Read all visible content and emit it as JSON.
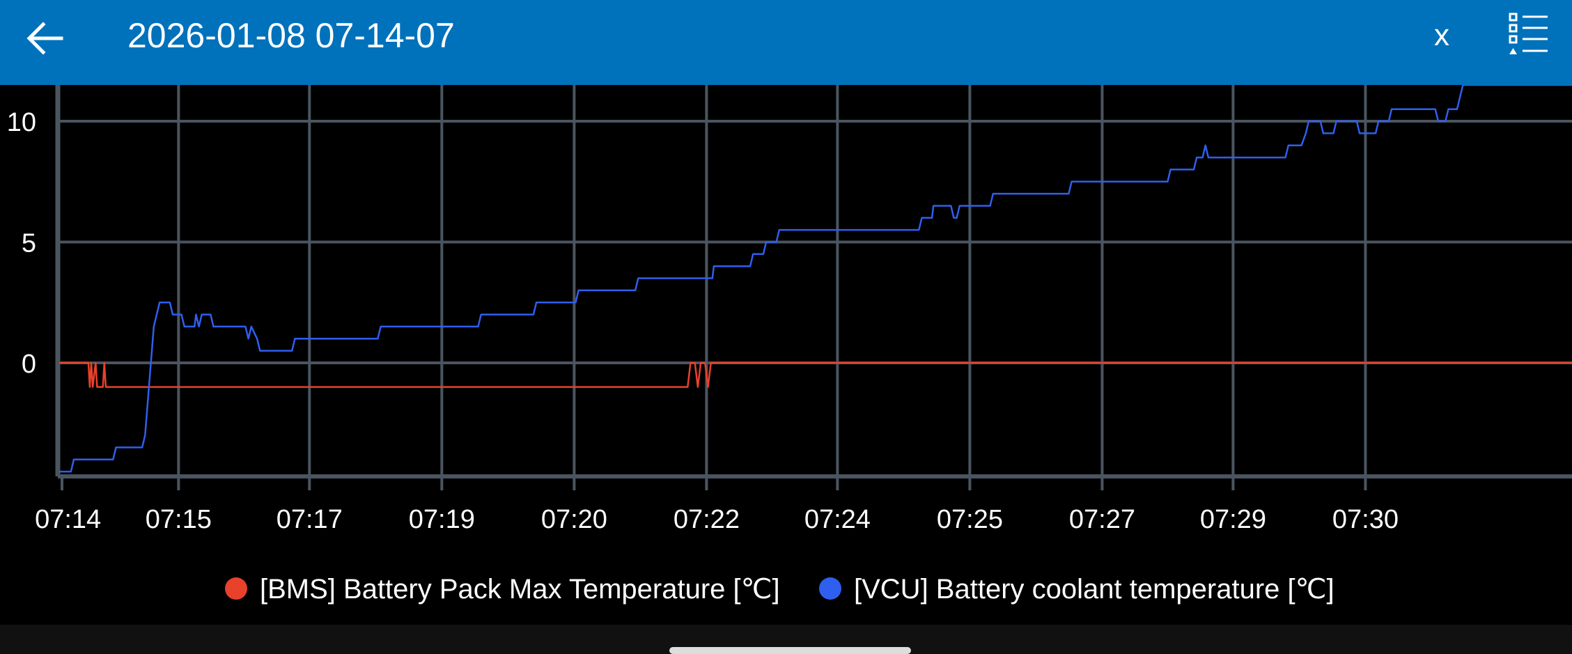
{
  "header": {
    "title": "2026-01-08 07-14-07",
    "back_icon": "arrow-left-icon",
    "close_label": "x",
    "menu_icon": "checklist-menu-icon"
  },
  "colors": {
    "appbar": "#0071BB",
    "background": "#000000",
    "grid": "#4B5560",
    "bms_series": "#E8412C",
    "vcu_series": "#2F5FEE"
  },
  "chart_data": {
    "type": "line",
    "title": "",
    "xlabel": "",
    "ylabel": "",
    "ylim": [
      -4.7,
      11.5
    ],
    "yticks": [
      0,
      5,
      10
    ],
    "xlim": [
      "07:14:07",
      "07:31:28"
    ],
    "xticks": [
      "07:14",
      "07:15",
      "07:17",
      "07:19",
      "07:20",
      "07:22",
      "07:24",
      "07:25",
      "07:27",
      "07:29",
      "07:30"
    ],
    "grid": true,
    "legend_position": "bottom-center",
    "series": [
      {
        "name": "[BMS] Battery Pack Max Temperature [℃]",
        "color": "#E8412C",
        "points": [
          [
            "07:14:08",
            0
          ],
          [
            "07:14:28",
            0
          ],
          [
            "07:14:29",
            -1
          ],
          [
            "07:14:30",
            0
          ],
          [
            "07:14:31",
            -1
          ],
          [
            "07:14:33",
            0
          ],
          [
            "07:14:34",
            -1
          ],
          [
            "07:14:38",
            -1
          ],
          [
            "07:14:39",
            0
          ],
          [
            "07:14:40",
            -1
          ],
          [
            "07:21:20",
            -1
          ],
          [
            "07:21:22",
            0
          ],
          [
            "07:21:25",
            0
          ],
          [
            "07:21:27",
            -1
          ],
          [
            "07:21:29",
            0
          ],
          [
            "07:21:32",
            0
          ],
          [
            "07:21:34",
            -1
          ],
          [
            "07:21:36",
            0
          ],
          [
            "07:31:28",
            0
          ]
        ]
      },
      {
        "name": "[VCU] Battery coolant temperature [℃]",
        "color": "#2F5FEE",
        "points": [
          [
            "07:14:08",
            -4.5
          ],
          [
            "07:14:16",
            -4.5
          ],
          [
            "07:14:18",
            -4
          ],
          [
            "07:14:45",
            -4
          ],
          [
            "07:14:47",
            -3.5
          ],
          [
            "07:15:05",
            -3.5
          ],
          [
            "07:15:07",
            -3
          ],
          [
            "07:15:13",
            1.5
          ],
          [
            "07:15:17",
            2.5
          ],
          [
            "07:15:24",
            2.5
          ],
          [
            "07:15:26",
            2
          ],
          [
            "07:15:32",
            2
          ],
          [
            "07:15:34",
            1.5
          ],
          [
            "07:15:41",
            1.5
          ],
          [
            "07:15:42",
            2
          ],
          [
            "07:15:44",
            1.5
          ],
          [
            "07:15:46",
            2
          ],
          [
            "07:15:52",
            2
          ],
          [
            "07:15:54",
            1.5
          ],
          [
            "07:16:16",
            1.5
          ],
          [
            "07:16:18",
            1
          ],
          [
            "07:16:20",
            1.5
          ],
          [
            "07:16:24",
            1
          ],
          [
            "07:16:26",
            0.5
          ],
          [
            "07:16:48",
            0.5
          ],
          [
            "07:16:50",
            1
          ],
          [
            "07:17:47",
            1
          ],
          [
            "07:17:49",
            1.5
          ],
          [
            "07:18:56",
            1.5
          ],
          [
            "07:18:58",
            2
          ],
          [
            "07:19:34",
            2
          ],
          [
            "07:19:36",
            2.5
          ],
          [
            "07:20:03",
            2.5
          ],
          [
            "07:20:05",
            3
          ],
          [
            "07:20:44",
            3
          ],
          [
            "07:20:46",
            3.5
          ],
          [
            "07:21:37",
            3.5
          ],
          [
            "07:21:38",
            4
          ],
          [
            "07:22:03",
            4
          ],
          [
            "07:22:05",
            4.5
          ],
          [
            "07:22:12",
            4.5
          ],
          [
            "07:22:14",
            5
          ],
          [
            "07:22:21",
            5
          ],
          [
            "07:22:23",
            5.5
          ],
          [
            "07:23:59",
            5.5
          ],
          [
            "07:24:01",
            6
          ],
          [
            "07:24:08",
            6
          ],
          [
            "07:24:09",
            6.5
          ],
          [
            "07:24:21",
            6.5
          ],
          [
            "07:24:23",
            6
          ],
          [
            "07:24:25",
            6
          ],
          [
            "07:24:27",
            6.5
          ],
          [
            "07:24:48",
            6.5
          ],
          [
            "07:24:50",
            7
          ],
          [
            "07:25:42",
            7
          ],
          [
            "07:25:44",
            7.5
          ],
          [
            "07:26:50",
            7.5
          ],
          [
            "07:26:52",
            8
          ],
          [
            "07:27:08",
            8
          ],
          [
            "07:27:10",
            8.5
          ],
          [
            "07:27:14",
            8.5
          ],
          [
            "07:27:16",
            9
          ],
          [
            "07:27:18",
            8.5
          ],
          [
            "07:28:11",
            8.5
          ],
          [
            "07:28:13",
            9
          ],
          [
            "07:28:22",
            9
          ],
          [
            "07:28:25",
            9.5
          ],
          [
            "07:28:27",
            10
          ],
          [
            "07:28:35",
            10
          ],
          [
            "07:28:37",
            9.5
          ],
          [
            "07:28:44",
            9.5
          ],
          [
            "07:28:46",
            10
          ],
          [
            "07:29:00",
            10
          ],
          [
            "07:29:02",
            9.5
          ],
          [
            "07:29:13",
            9.5
          ],
          [
            "07:29:15",
            10
          ],
          [
            "07:29:22",
            10
          ],
          [
            "07:29:24",
            10.5
          ],
          [
            "07:29:54",
            10.5
          ],
          [
            "07:29:56",
            10
          ],
          [
            "07:30:01",
            10
          ],
          [
            "07:30:03",
            10.5
          ],
          [
            "07:30:09",
            10.5
          ],
          [
            "07:30:13",
            11.5
          ],
          [
            "07:31:28",
            11.5
          ]
        ]
      }
    ]
  }
}
